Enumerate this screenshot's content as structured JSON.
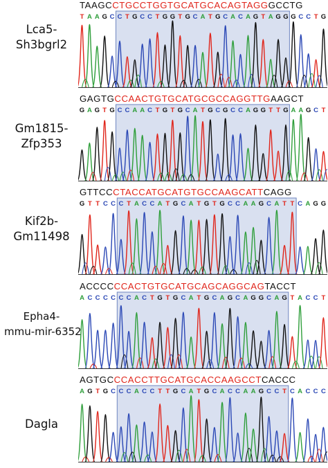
{
  "colors": {
    "A": "#2e9e3a",
    "C": "#2a47b5",
    "G": "#111111",
    "T": "#e0251b",
    "highlight_fill": "#b9c7e4",
    "highlight_stroke": "#6f86c0",
    "sequence_highlight": "#e0251b"
  },
  "panels": [
    {
      "label_line1": "Lca5-",
      "label_line2": "Sh3bgrl2",
      "ref_left": "TAAGC",
      "ref_mid": "CTGCCTGGTGCATGCACAGTAGG",
      "ref_right": "GCCTG",
      "called": "TAAGCCTGCCTGGTGCATGCACAGTAGGGCCTG"
    },
    {
      "label_line1": "Gm1815-",
      "label_line2": "Zfp353",
      "ref_left": "GAGTG",
      "ref_mid": "CCAACTGTGCATGCGCCAGGTTG",
      "ref_right": "AAGCT",
      "called": "GAGTGCCAACTGTGCATGCGCCAGGTTGAAGCT"
    },
    {
      "label_line1": "Kif2b-",
      "label_line2": "Gm11498",
      "ref_left": "GTTCC",
      "ref_mid": "CTACCATGCATGTGCCAAGCATT",
      "ref_right": "CAGG",
      "called": "GTTCCCTACCATGCATGTGCCAAGCATTCAGG"
    },
    {
      "label_line1": "Epha4-",
      "label_line2": "mmu-mir-6352",
      "ref_left": "ACCCC",
      "ref_mid": "CCACTGTGCATGCAGCAGGCAG",
      "ref_right": "TACCT",
      "called": "ACCCCCCACTGTGCATGCAGCAGGCAGTACCT"
    },
    {
      "label_line1": "Dagla",
      "label_line2": "",
      "ref_left": "AGTGC",
      "ref_mid": "CCACCTTGCATGCACCAAGCCT",
      "ref_right": "CACCC",
      "called": "AGTGCCCACCTTGCATGCACCAAGCCTCACCC"
    }
  ]
}
